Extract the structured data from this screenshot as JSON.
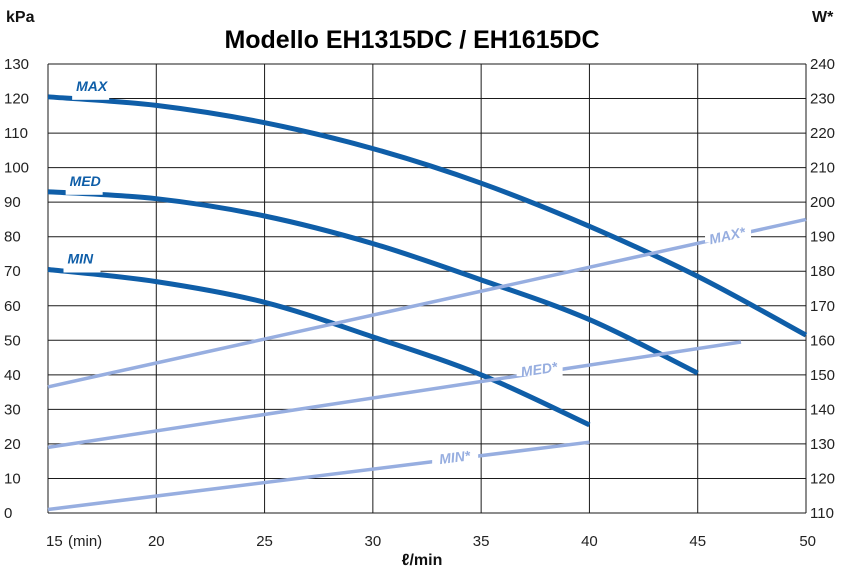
{
  "chart_data": {
    "type": "line",
    "title": "Modello EH1315DC  /  EH1615DC",
    "left_unit": "kPa",
    "right_unit": "W*",
    "xlabel": "ℓ/min",
    "x_min_label": "(min)",
    "xlim": [
      15,
      50
    ],
    "ylim": [
      0,
      130
    ],
    "y2lim": [
      110,
      240
    ],
    "x_ticks": [
      15,
      20,
      25,
      30,
      35,
      40,
      45,
      50
    ],
    "y_ticks": [
      0,
      10,
      20,
      30,
      40,
      50,
      60,
      70,
      80,
      90,
      100,
      110,
      120,
      130
    ],
    "y2_ticks": [
      110,
      120,
      130,
      140,
      150,
      160,
      170,
      180,
      190,
      200,
      210,
      220,
      230,
      240
    ],
    "grid": true,
    "colors": {
      "pressure": "#0f5ea8",
      "power": "#97aee0",
      "title": "#1a6dc0"
    },
    "series": [
      {
        "name": "MAX",
        "axis": "left",
        "x": [
          15,
          20,
          25,
          30,
          35,
          40,
          45,
          50
        ],
        "y": [
          120.5,
          118,
          113,
          105.5,
          95.5,
          83,
          68.5,
          51.5
        ]
      },
      {
        "name": "MED",
        "axis": "left",
        "x": [
          15,
          20,
          25,
          30,
          35,
          40,
          45
        ],
        "y": [
          93,
          91,
          86,
          78,
          67.5,
          56,
          40.5
        ]
      },
      {
        "name": "MIN",
        "axis": "left",
        "x": [
          15,
          20,
          25,
          30,
          35,
          40
        ],
        "y": [
          70.5,
          67,
          61,
          51,
          40,
          25.5
        ]
      },
      {
        "name": "MAX*",
        "axis": "right",
        "x": [
          15,
          50
        ],
        "y": [
          146.5,
          195
        ]
      },
      {
        "name": "MED*",
        "axis": "right",
        "x": [
          15,
          47
        ],
        "y": [
          129,
          159.5
        ]
      },
      {
        "name": "MIN*",
        "axis": "right",
        "x": [
          15,
          40
        ],
        "y": [
          111,
          130.5
        ]
      }
    ]
  }
}
